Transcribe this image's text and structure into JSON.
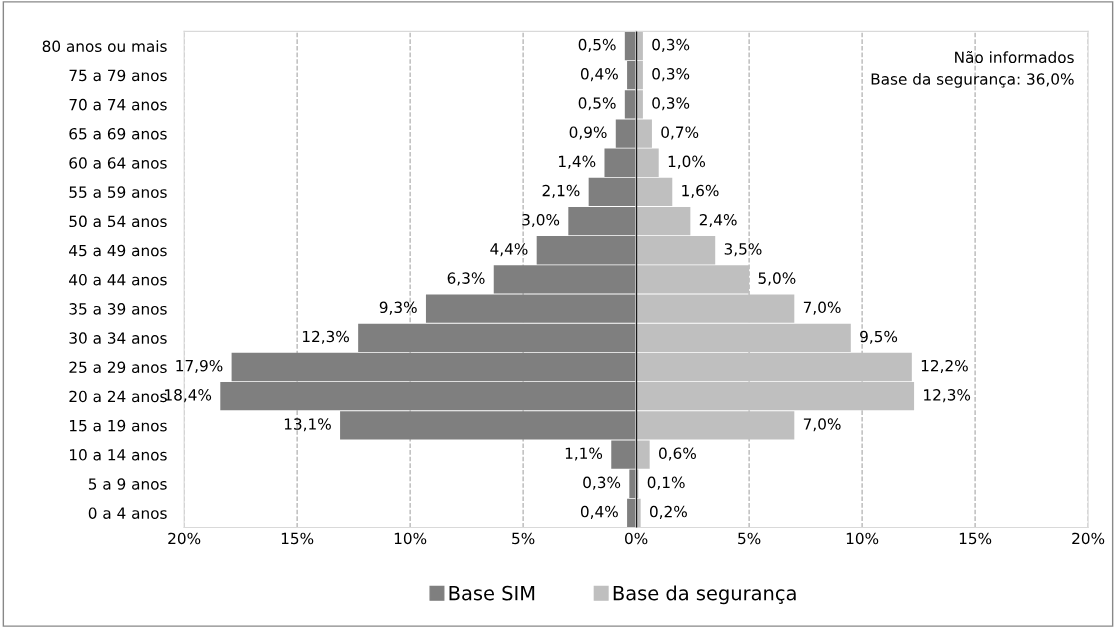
{
  "chart_data": [
    {
      "type": "bar",
      "orientation": "horizontal",
      "categories": [
        "80 anos ou mais",
        "75 a 79 anos",
        "70 a 74 anos",
        "65 a 69 anos",
        "60 a 64 anos",
        "55 a 59 anos",
        "50 a 54 anos",
        "45 a 49 anos",
        "40 a 44 anos",
        "35 a 39 anos",
        "30 a 34 anos",
        "25 a 29 anos",
        "20 a 24 anos",
        "15 a 19 anos",
        "10 a 14 anos",
        "5 a 9 anos",
        "0 a 4 anos"
      ],
      "series": [
        {
          "name": "Base SIM",
          "color": "#7f7f7f",
          "values": [
            0.5,
            0.4,
            0.5,
            0.9,
            1.4,
            2.1,
            3.0,
            4.4,
            6.3,
            9.3,
            12.3,
            17.9,
            18.4,
            13.1,
            1.1,
            0.3,
            0.4
          ],
          "value_labels": [
            "0,5%",
            "0,4%",
            "0,5%",
            "0,9%",
            "1,4%",
            "2,1%",
            "3,0%",
            "4,4%",
            "6,3%",
            "9,3%",
            "12,3%",
            "17,9%",
            "18,4%",
            "13,1%",
            "1,1%",
            "0,3%",
            "0,4%"
          ]
        }
      ],
      "xlim": [
        20,
        0
      ],
      "xticks": [
        {
          "value": 20,
          "label": "20%"
        },
        {
          "value": 15,
          "label": "15%"
        },
        {
          "value": 10,
          "label": "10%"
        },
        {
          "value": 5,
          "label": "5%"
        },
        {
          "value": 0,
          "label": null
        }
      ],
      "grid": "x",
      "legend": "bottom"
    },
    {
      "type": "bar",
      "orientation": "horizontal",
      "categories": [
        null,
        null,
        null,
        null,
        null,
        null,
        null,
        null,
        null,
        null,
        null,
        null,
        null,
        null,
        null,
        null,
        null
      ],
      "series": [
        {
          "name": "Base da segurança",
          "color": "#bfbfbf",
          "values": [
            0.3,
            0.3,
            0.3,
            0.7,
            1.0,
            1.6,
            2.4,
            3.5,
            5.0,
            7.0,
            9.5,
            12.2,
            12.3,
            7.0,
            0.6,
            0.1,
            0.2
          ],
          "value_labels": [
            "0,3%",
            "0,3%",
            "0,3%",
            "0,7%",
            "1,0%",
            "1,6%",
            "2,4%",
            "3,5%",
            "5,0%",
            "7,0%",
            "9,5%",
            "12,2%",
            "12,3%",
            "7,0%",
            "0,6%",
            "0,1%",
            "0,2%"
          ]
        }
      ],
      "xlim": [
        0,
        20
      ],
      "xticks": [
        {
          "value": 0,
          "label": "0%"
        },
        {
          "value": 5,
          "label": "5%"
        },
        {
          "value": 10,
          "label": "10%"
        },
        {
          "value": 15,
          "label": "15%"
        },
        {
          "value": 20,
          "label": "20%"
        }
      ],
      "ref_lines": [
        {
          "axis": "x",
          "value": 0,
          "color": "#000000"
        }
      ],
      "annotations": [
        "Não informados\nBase da segurança: 36,0%"
      ],
      "tick_labels": "x",
      "grid": "x",
      "legend": "bottom"
    }
  ]
}
